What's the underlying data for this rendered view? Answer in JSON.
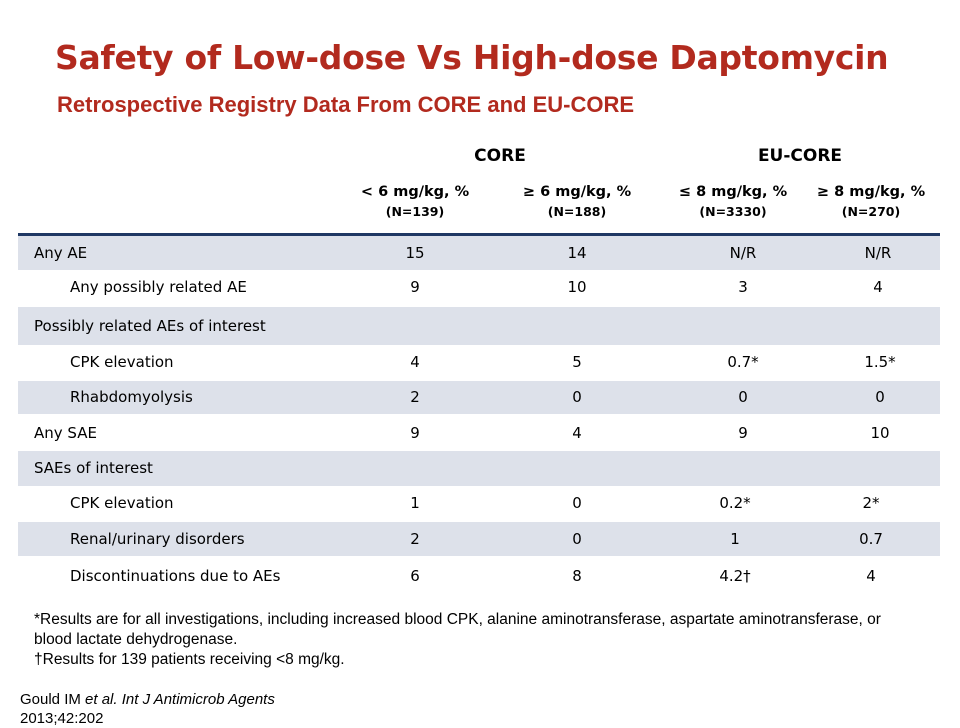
{
  "title": "Safety of Low-dose Vs High-dose Daptomycin",
  "subtitle": "Retrospective Registry Data From CORE and EU-CORE",
  "groups": [
    "CORE",
    "EU-CORE"
  ],
  "columns": [
    {
      "dose": "< 6 mg/kg, %",
      "n": "(N=139)"
    },
    {
      "dose": "≥ 6 mg/kg, %",
      "n": "(N=188)"
    },
    {
      "dose": "≤ 8 mg/kg, %",
      "n": "(N=3330)"
    },
    {
      "dose": "≥ 8 mg/kg, %",
      "n": "(N=270)"
    }
  ],
  "rows": [
    {
      "label": "Any AE",
      "values": [
        "15",
        "14",
        "N/R",
        "N/R"
      ]
    },
    {
      "label": "Any possibly related AE",
      "values": [
        "9",
        "10",
        "3",
        "4"
      ]
    },
    {
      "label": "Possibly related AEs of interest",
      "values": [
        "",
        "",
        "",
        ""
      ]
    },
    {
      "label": "CPK elevation",
      "values": [
        "4",
        "5",
        "0.7*",
        "1.5*"
      ]
    },
    {
      "label": "Rhabdomyolysis",
      "values": [
        "2",
        "0",
        "0",
        "0"
      ]
    },
    {
      "label": "Any SAE",
      "values": [
        "9",
        "4",
        "9",
        "10"
      ]
    },
    {
      "label": "SAEs of interest",
      "values": [
        "",
        "",
        "",
        ""
      ]
    },
    {
      "label": "CPK elevation",
      "values": [
        "1",
        "0",
        "0.2*",
        "2*"
      ]
    },
    {
      "label": "Renal/urinary disorders",
      "values": [
        "2",
        "0",
        "1",
        "0.7"
      ]
    },
    {
      "label": "Discontinuations due to AEs",
      "values": [
        "6",
        "8",
        "4.2†",
        "4"
      ]
    }
  ],
  "footnotes": [
    "*Results are for all investigations, including increased blood CPK, alanine aminotransferase, aspartate aminotransferase, or blood lactate dehydrogenase.",
    "†Results for 139 patients receiving <8 mg/kg."
  ],
  "citation": {
    "author": "Gould IM ",
    "etal": "et al.",
    "journal": " Int J Antimicrob Agents",
    "ref": "2013;42:202"
  }
}
